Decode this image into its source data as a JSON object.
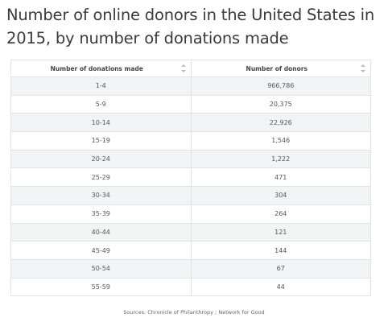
{
  "title": "Number of online donors in the United States in 2015, by number of donations made",
  "source": "Sources: Chronicle of Philanthropy ; Network for Good",
  "icons": {
    "sort": "sort-arrows-icon"
  },
  "chart_data": {
    "type": "table",
    "columns": [
      "Number of donations made",
      "Number of donors"
    ],
    "rows": [
      [
        "1-4",
        "966,786"
      ],
      [
        "5-9",
        "20,375"
      ],
      [
        "10-14",
        "22,926"
      ],
      [
        "15-19",
        "1,546"
      ],
      [
        "20-24",
        "1,222"
      ],
      [
        "25-29",
        "471"
      ],
      [
        "30-34",
        "304"
      ],
      [
        "35-39",
        "264"
      ],
      [
        "40-44",
        "121"
      ],
      [
        "45-49",
        "144"
      ],
      [
        "50-54",
        "67"
      ],
      [
        "55-59",
        "44"
      ]
    ]
  }
}
